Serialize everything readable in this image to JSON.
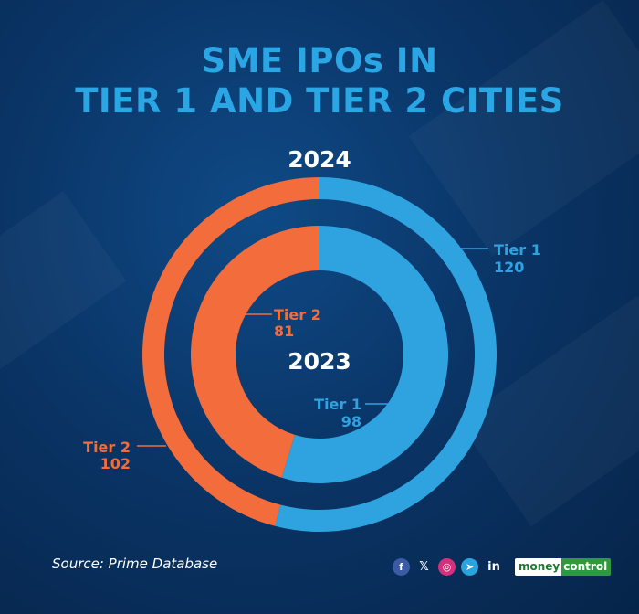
{
  "title": {
    "line1": "SME IPOs IN",
    "line2": "TIER 1 AND TIER 2 CITIES"
  },
  "colors": {
    "tier1": "#2ea3e0",
    "tier2": "#f26c3c",
    "title": "#29a6e3",
    "background": "#0a3567"
  },
  "chart_data": {
    "type": "pie",
    "variant": "nested-donut",
    "rings": [
      {
        "name": "2024",
        "position": "outer",
        "slices": [
          {
            "label": "Tier 1",
            "value": 120
          },
          {
            "label": "Tier 2",
            "value": 102
          }
        ]
      },
      {
        "name": "2023",
        "position": "inner",
        "slices": [
          {
            "label": "Tier 1",
            "value": 98
          },
          {
            "label": "Tier 2",
            "value": 81
          }
        ]
      }
    ]
  },
  "footer": {
    "source": "Source: Prime Database",
    "social_icons": [
      "facebook-icon",
      "x-icon",
      "instagram-icon",
      "telegram-icon",
      "linkedin-icon"
    ],
    "social_glyphs": {
      "fb": "f",
      "x": "𝕏",
      "ig": "◎",
      "tg": "➤",
      "li": "in"
    },
    "brand_part1": "money",
    "brand_part2": "control"
  }
}
